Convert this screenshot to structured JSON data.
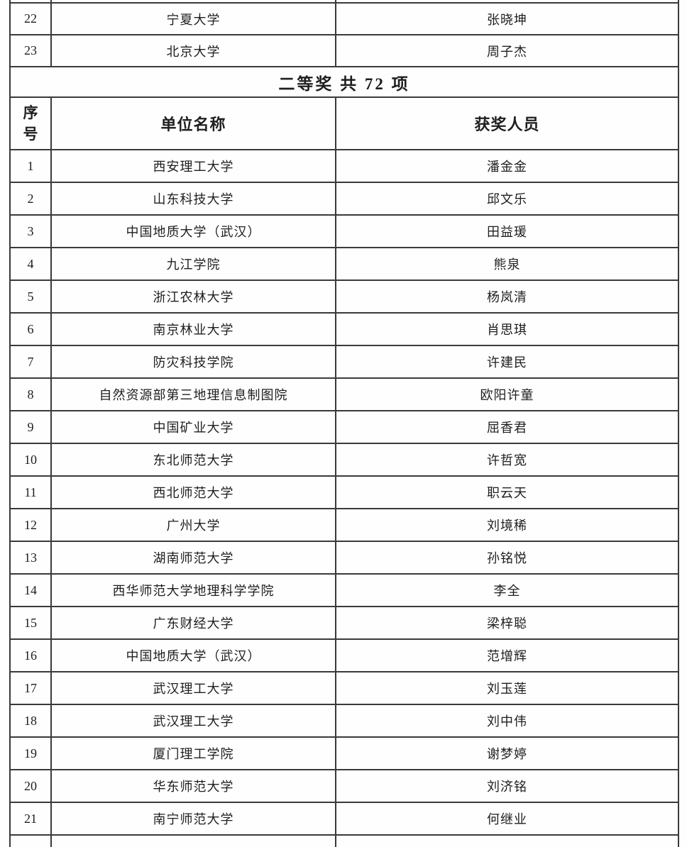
{
  "document": {
    "kind": "award-list-table-page",
    "section_title": "二等奖 共 72 项",
    "headers": {
      "no": "序\n号",
      "unit": "单位名称",
      "winner": "获奖人员"
    },
    "continued_rows": [
      {
        "no": "22",
        "unit": "宁夏大学",
        "winner": "张晓坤"
      },
      {
        "no": "23",
        "unit": "北京大学",
        "winner": "周子杰"
      }
    ],
    "rows": [
      {
        "no": "1",
        "unit": "西安理工大学",
        "winner": "潘金金"
      },
      {
        "no": "2",
        "unit": "山东科技大学",
        "winner": "邱文乐"
      },
      {
        "no": "3",
        "unit": "中国地质大学（武汉）",
        "winner": "田益瑗"
      },
      {
        "no": "4",
        "unit": "九江学院",
        "winner": "熊泉"
      },
      {
        "no": "5",
        "unit": "浙江农林大学",
        "winner": "杨岚清"
      },
      {
        "no": "6",
        "unit": "南京林业大学",
        "winner": "肖思琪"
      },
      {
        "no": "7",
        "unit": "防灾科技学院",
        "winner": "许建民"
      },
      {
        "no": "8",
        "unit": "自然资源部第三地理信息制图院",
        "winner": "欧阳许童"
      },
      {
        "no": "9",
        "unit": "中国矿业大学",
        "winner": "屈香君"
      },
      {
        "no": "10",
        "unit": "东北师范大学",
        "winner": "许哲宽"
      },
      {
        "no": "11",
        "unit": "西北师范大学",
        "winner": "职云天"
      },
      {
        "no": "12",
        "unit": "广州大学",
        "winner": "刘境稀"
      },
      {
        "no": "13",
        "unit": "湖南师范大学",
        "winner": "孙铭悦"
      },
      {
        "no": "14",
        "unit": "西华师范大学地理科学学院",
        "winner": "李全"
      },
      {
        "no": "15",
        "unit": "广东财经大学",
        "winner": "梁梓聪"
      },
      {
        "no": "16",
        "unit": "中国地质大学（武汉）",
        "winner": "范增辉"
      },
      {
        "no": "17",
        "unit": "武汉理工大学",
        "winner": "刘玉莲"
      },
      {
        "no": "18",
        "unit": "武汉理工大学",
        "winner": "刘中伟"
      },
      {
        "no": "19",
        "unit": "厦门理工学院",
        "winner": "谢梦婷"
      },
      {
        "no": "20",
        "unit": "华东师范大学",
        "winner": "刘济铭"
      },
      {
        "no": "21",
        "unit": "南宁师范大学",
        "winner": "何继业"
      }
    ],
    "colors": {
      "border": "#3a3a3a",
      "text": "#1e1e1e",
      "background": "#fefefe"
    }
  }
}
